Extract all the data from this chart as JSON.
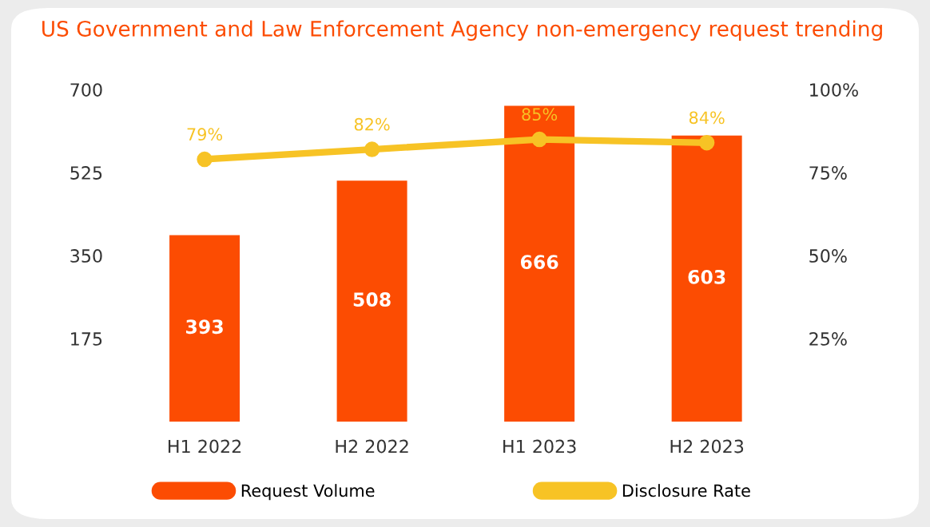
{
  "chart_data": {
    "type": "bar",
    "title": "US Government and Law Enforcement Agency non-emergency request trending",
    "categories": [
      "H1 2022",
      "H2 2022",
      "H1 2023",
      "H2 2023"
    ],
    "series": [
      {
        "name": "Request Volume",
        "color": "#fc4c02",
        "values": [
          393,
          508,
          666,
          603
        ],
        "value_labels": [
          "393",
          "508",
          "666",
          "603"
        ]
      },
      {
        "name": "Disclosure Rate",
        "type": "line",
        "axis": "y2",
        "color": "#f7c325",
        "marker": "circle",
        "values": [
          79,
          82,
          85,
          84
        ],
        "value_labels": [
          "79%",
          "82%",
          "85%",
          "84%"
        ]
      }
    ],
    "ylim": [
      0,
      700
    ],
    "yticks": [
      175,
      350,
      525,
      700
    ],
    "y2lim": [
      0,
      100
    ],
    "y2ticks": [
      {
        "value": 25,
        "label": "25%"
      },
      {
        "value": 50,
        "label": "50%"
      },
      {
        "value": 75,
        "label": "75%"
      },
      {
        "value": 100,
        "label": "100%"
      }
    ],
    "grid": false,
    "legend": "bottom"
  }
}
